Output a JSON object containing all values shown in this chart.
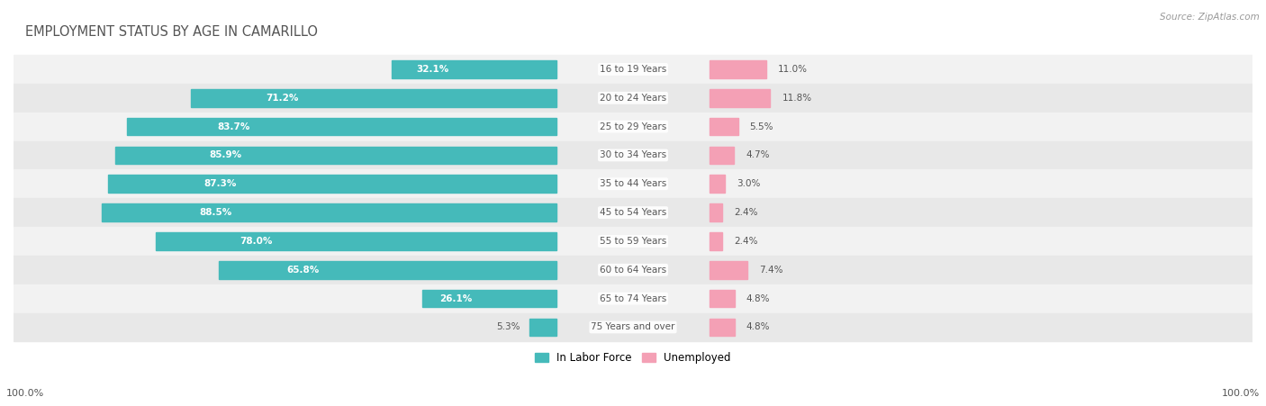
{
  "title": "EMPLOYMENT STATUS BY AGE IN CAMARILLO",
  "source": "Source: ZipAtlas.com",
  "categories": [
    "16 to 19 Years",
    "20 to 24 Years",
    "25 to 29 Years",
    "30 to 34 Years",
    "35 to 44 Years",
    "45 to 54 Years",
    "55 to 59 Years",
    "60 to 64 Years",
    "65 to 74 Years",
    "75 Years and over"
  ],
  "in_labor_force": [
    32.1,
    71.2,
    83.7,
    85.9,
    87.3,
    88.5,
    78.0,
    65.8,
    26.1,
    5.3
  ],
  "unemployed": [
    11.0,
    11.8,
    5.5,
    4.7,
    3.0,
    2.4,
    2.4,
    7.4,
    4.8,
    4.8
  ],
  "labor_force_color": "#45BABA",
  "unemployed_color": "#F4A0B5",
  "row_bg_color_light": "#F2F2F2",
  "row_bg_color_dark": "#E8E8E8",
  "title_color": "#555555",
  "label_color": "#555555",
  "text_color_white": "#FFFFFF",
  "text_color_dark": "#555555",
  "source_color": "#999999",
  "axis_label": "100.0%",
  "figsize": [
    14.06,
    4.51
  ],
  "dpi": 100
}
